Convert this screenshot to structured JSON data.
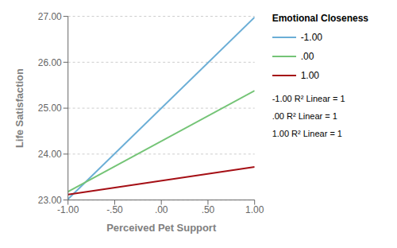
{
  "chart_data": {
    "type": "line",
    "xlabel": "Perceived Pet Support",
    "ylabel": "Life Satisfaction",
    "legend_title": "Emotional Closeness",
    "x": [
      -1.0,
      1.0
    ],
    "series": [
      {
        "name": "-1.00",
        "color": "#6baed6",
        "values": [
          23.02,
          26.98
        ]
      },
      {
        "name": ".00",
        "color": "#74c476",
        "values": [
          23.18,
          25.38
        ]
      },
      {
        "name": "1.00",
        "color": "#a50f15",
        "values": [
          23.12,
          23.72
        ]
      }
    ],
    "xlim": [
      -1.0,
      1.0
    ],
    "ylim": [
      23.0,
      27.0
    ],
    "xticks": [
      {
        "value": -1.0,
        "label": "-1.00"
      },
      {
        "value": -0.5,
        "label": "-.50"
      },
      {
        "value": 0.0,
        "label": ".00"
      },
      {
        "value": 0.5,
        "label": ".50"
      },
      {
        "value": 1.0,
        "label": "1.00"
      }
    ],
    "yticks": [
      {
        "value": 23.0,
        "label": "23.00"
      },
      {
        "value": 24.0,
        "label": "24.00"
      },
      {
        "value": 25.0,
        "label": "25.00"
      },
      {
        "value": 26.0,
        "label": "26.00"
      },
      {
        "value": 27.0,
        "label": "27.00"
      }
    ],
    "annotations": [
      "-1.00 R² Linear = 1",
      ".00 R² Linear = 1",
      "1.00 R² Linear = 1"
    ],
    "grid": "y",
    "legend": "right",
    "marker": "none"
  }
}
